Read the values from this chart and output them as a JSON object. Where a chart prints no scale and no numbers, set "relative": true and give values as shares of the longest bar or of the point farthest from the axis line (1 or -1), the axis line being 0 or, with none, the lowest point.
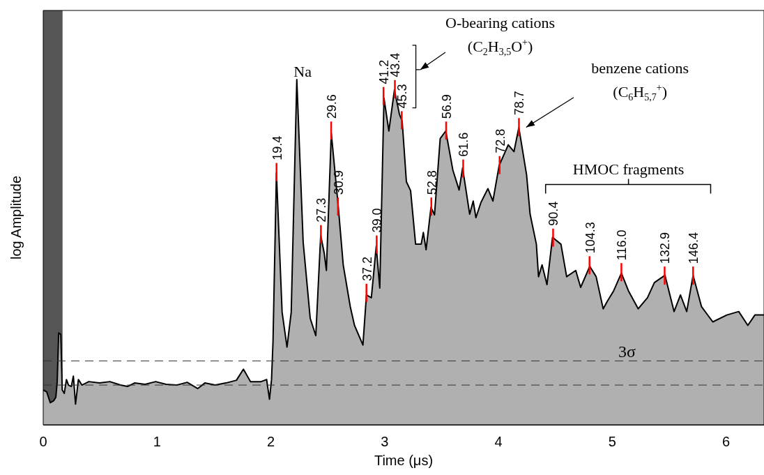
{
  "chart_data": {
    "type": "area",
    "relative": true,
    "xlabel": "Time (μs)",
    "ylabel": "log Amplitude",
    "xlim": [
      0,
      6.333
    ],
    "xticks": [
      0,
      1,
      2,
      3,
      4,
      5,
      6
    ],
    "grid": false,
    "legend": false,
    "series": [
      {
        "color": "#b0b0b0",
        "x": [
          0,
          0.031,
          0.062,
          0.093,
          0.111,
          0.123,
          0.136,
          0.154,
          0.167,
          0.185,
          0.204,
          0.222,
          0.247,
          0.265,
          0.284,
          0.309,
          0.34,
          0.401,
          0.494,
          0.586,
          0.679,
          0.741,
          0.802,
          0.895,
          0.988,
          1.08,
          1.173,
          1.265,
          1.358,
          1.42,
          1.512,
          1.605,
          1.698,
          1.759,
          1.821,
          1.914,
          1.963,
          1.988,
          2.006,
          2.019,
          2.049,
          2.099,
          2.142,
          2.179,
          2.228,
          2.284,
          2.346,
          2.395,
          2.438,
          2.469,
          2.488,
          2.531,
          2.593,
          2.636,
          2.698,
          2.735,
          2.809,
          2.84,
          2.883,
          2.926,
          2.957,
          2.994,
          3.037,
          3.086,
          3.13,
          3.154,
          3.191,
          3.228,
          3.272,
          3.321,
          3.34,
          3.364,
          3.407,
          3.438,
          3.488,
          3.537,
          3.599,
          3.654,
          3.685,
          3.747,
          3.778,
          3.802,
          3.846,
          3.907,
          3.951,
          4.006,
          4.086,
          4.136,
          4.179,
          4.247,
          4.278,
          4.333,
          4.352,
          4.383,
          4.426,
          4.475,
          4.549,
          4.599,
          4.679,
          4.722,
          4.802,
          4.858,
          4.92,
          4.957,
          5.012,
          5.08,
          5.142,
          5.228,
          5.309,
          5.37,
          5.463,
          5.543,
          5.599,
          5.654,
          5.71,
          5.784,
          5.883,
          6.006,
          6.111,
          6.191,
          6.253,
          6.333
        ],
        "values": [
          0.101,
          0.095,
          0.064,
          0.07,
          0.08,
          0.125,
          0.266,
          0.262,
          0.101,
          0.091,
          0.131,
          0.115,
          0.111,
          0.141,
          0.06,
          0.131,
          0.115,
          0.125,
          0.121,
          0.125,
          0.115,
          0.111,
          0.121,
          0.117,
          0.125,
          0.117,
          0.115,
          0.123,
          0.105,
          0.121,
          0.115,
          0.121,
          0.129,
          0.161,
          0.125,
          0.125,
          0.131,
          0.074,
          0.131,
          0.241,
          0.73,
          0.326,
          0.225,
          0.326,
          1.0,
          0.529,
          0.308,
          0.258,
          0.549,
          0.497,
          0.447,
          0.845,
          0.63,
          0.463,
          0.342,
          0.288,
          0.231,
          0.376,
          0.368,
          0.517,
          0.396,
          0.946,
          0.851,
          0.97,
          0.899,
          0.879,
          0.704,
          0.678,
          0.523,
          0.523,
          0.557,
          0.507,
          0.63,
          0.608,
          0.829,
          0.851,
          0.738,
          0.68,
          0.744,
          0.61,
          0.648,
          0.6,
          0.644,
          0.684,
          0.648,
          0.751,
          0.811,
          0.791,
          0.861,
          0.724,
          0.61,
          0.523,
          0.429,
          0.463,
          0.406,
          0.543,
          0.523,
          0.429,
          0.447,
          0.398,
          0.459,
          0.429,
          0.336,
          0.358,
          0.388,
          0.439,
          0.388,
          0.336,
          0.368,
          0.412,
          0.433,
          0.328,
          0.376,
          0.328,
          0.433,
          0.342,
          0.298,
          0.318,
          0.328,
          0.288,
          0.318,
          0.318
        ]
      }
    ],
    "bands": [
      {
        "axis": "x",
        "from": 0,
        "to": 0.17,
        "color": "#555555"
      }
    ],
    "ref_lines": [
      {
        "axis": "y",
        "value": 0.185,
        "label": "3σ",
        "color": "#333333",
        "line_style": "dashed"
      },
      {
        "axis": "y",
        "value": 0.115,
        "color": "#333333",
        "line_style": "dashed"
      }
    ],
    "annotations": [
      {
        "text": "19.4",
        "x": 2.05,
        "y": 0.73
      },
      {
        "text": "Na",
        "x": 2.23,
        "y": 1.0
      },
      {
        "text": "27.3",
        "x": 2.44,
        "y": 0.55
      },
      {
        "text": "29.6",
        "x": 2.53,
        "y": 0.85
      },
      {
        "text": "30.9",
        "x": 2.59,
        "y": 0.63
      },
      {
        "text": "37.2",
        "x": 2.84,
        "y": 0.38
      },
      {
        "text": "39.0",
        "x": 2.93,
        "y": 0.52
      },
      {
        "text": "41.2",
        "x": 2.99,
        "y": 0.95
      },
      {
        "text": "43.4",
        "x": 3.09,
        "y": 0.97
      },
      {
        "text": "45.3",
        "x": 3.15,
        "y": 0.88
      },
      {
        "text": "52.8",
        "x": 3.41,
        "y": 0.63
      },
      {
        "text": "56.9",
        "x": 3.54,
        "y": 0.85
      },
      {
        "text": "61.6",
        "x": 3.69,
        "y": 0.74
      },
      {
        "text": "72.8",
        "x": 4.01,
        "y": 0.75
      },
      {
        "text": "78.7",
        "x": 4.18,
        "y": 0.86
      },
      {
        "text": "90.4",
        "x": 4.48,
        "y": 0.54
      },
      {
        "text": "104.3",
        "x": 4.8,
        "y": 0.46
      },
      {
        "text": "116.0",
        "x": 5.08,
        "y": 0.44
      },
      {
        "text": "132.9",
        "x": 5.46,
        "y": 0.43
      },
      {
        "text": "146.4",
        "x": 5.71,
        "y": 0.43
      },
      "O-bearing cations (C$_{2}$H$_{3,5}$O$^{+}$)",
      "benzene cations (C$_{6}$H$_{5,7}$$^{+}$)",
      "HMOC fragments"
    ]
  }
}
